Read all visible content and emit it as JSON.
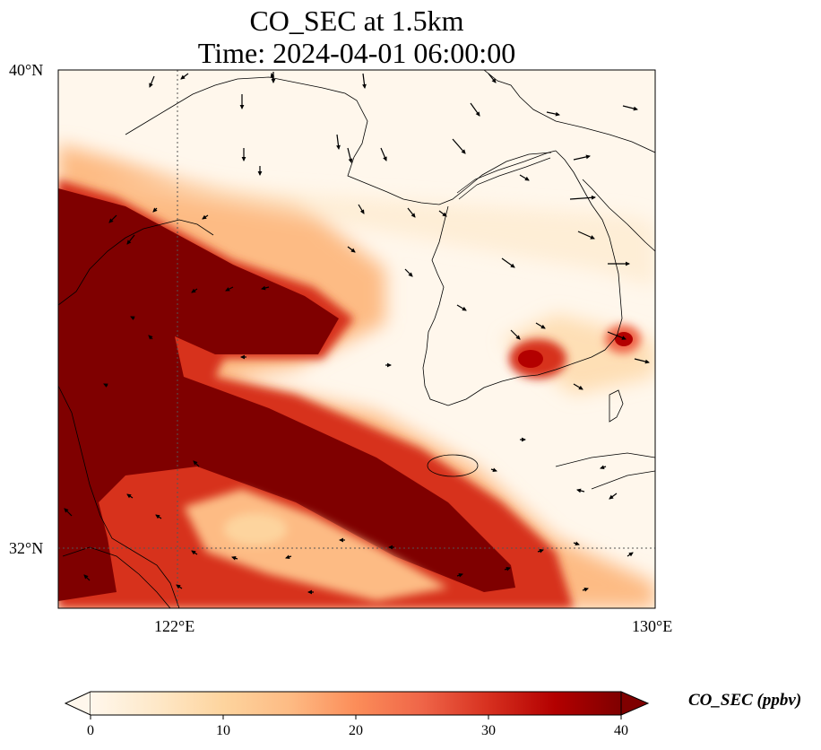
{
  "title": {
    "line1": "CO_SEC at 1.5km",
    "line2": "Time: 2024-04-01 06:00:00"
  },
  "axes": {
    "lat_labels": [
      "40°N",
      "32°N"
    ],
    "lon_labels": [
      "122°E",
      "130°E"
    ]
  },
  "colorbar": {
    "label": "CO_SEC (ppbv)",
    "ticks": [
      "0",
      "10",
      "20",
      "30",
      "40"
    ],
    "colormap": "OrRd",
    "colors": [
      "#fff7ec",
      "#fee8c8",
      "#fdd49e",
      "#fdbb84",
      "#fc8d59",
      "#ef6548",
      "#d7301f",
      "#b30000",
      "#7f0000"
    ],
    "extend": "both"
  },
  "map": {
    "gridlines": "dotted",
    "features": [
      "coastlines",
      "borders"
    ],
    "wind_vectors": true
  }
}
